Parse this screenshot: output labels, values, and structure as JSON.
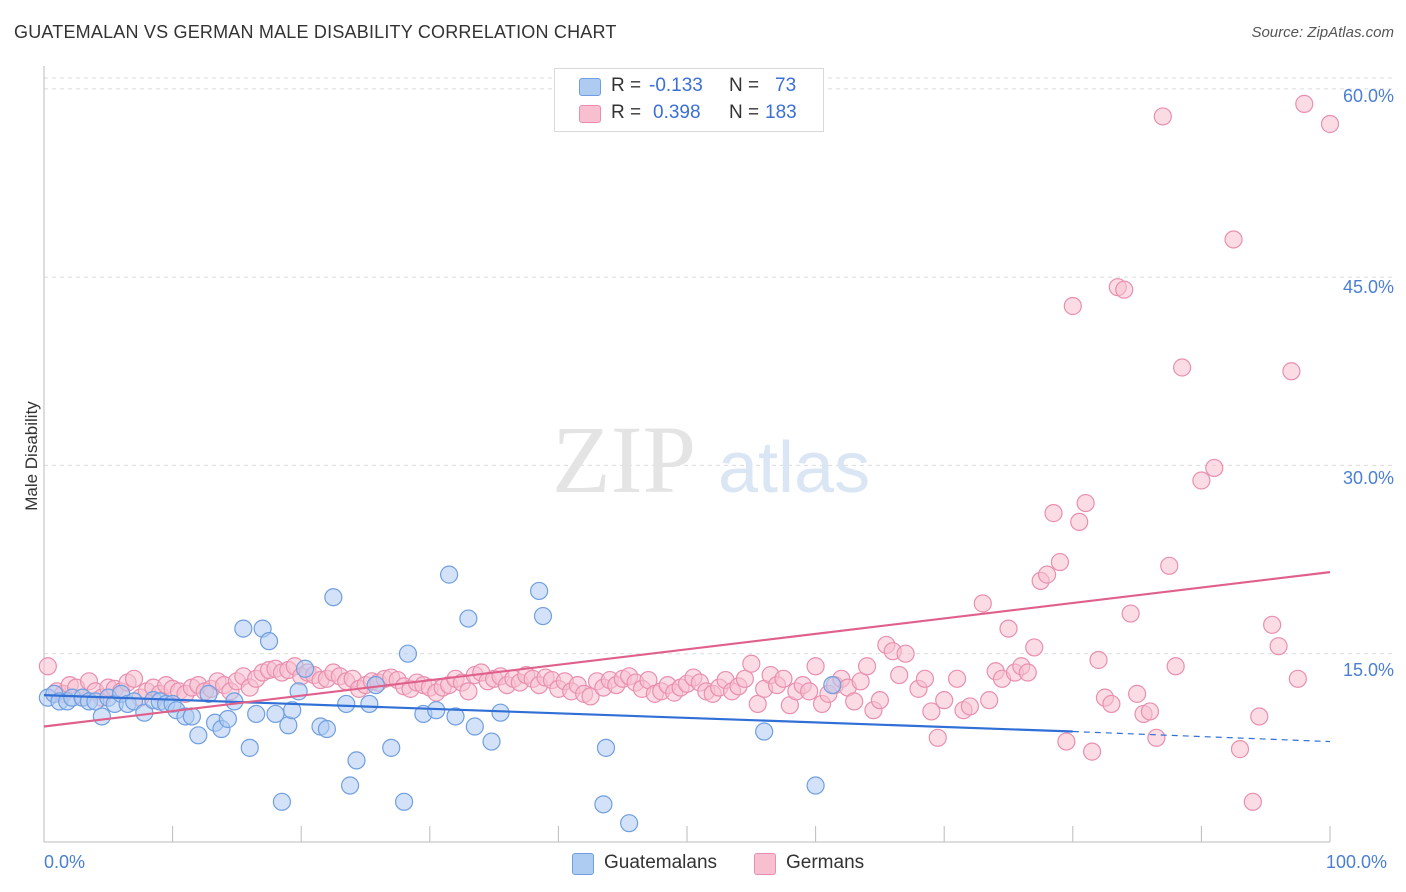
{
  "title": "GUATEMALAN VS GERMAN MALE DISABILITY CORRELATION CHART",
  "source": "Source: ZipAtlas.com",
  "watermark": {
    "zip": "ZIP",
    "atlas": "atlas"
  },
  "legend": {
    "rows": [
      {
        "r_label": "R =",
        "r_value": "-0.133",
        "n_label": "N =",
        "n_value": "73",
        "color": "#aecbf2",
        "stroke": "#6f9fe0"
      },
      {
        "r_label": "R =",
        "r_value": "0.398",
        "n_label": "N =",
        "n_value": "183",
        "color": "#f7bfd0",
        "stroke": "#e98fae"
      }
    ]
  },
  "bottom_legend": [
    {
      "label": "Guatemalans",
      "color": "#aecbf2",
      "stroke": "#6f9fe0"
    },
    {
      "label": "Germans",
      "color": "#f7bfd0",
      "stroke": "#e98fae"
    }
  ],
  "chart_data": {
    "type": "scatter",
    "title": "GUATEMALAN VS GERMAN MALE DISABILITY CORRELATION CHART",
    "xlabel": "",
    "ylabel": "Male Disability",
    "xlim": [
      0,
      100
    ],
    "ylim": [
      0,
      61.5
    ],
    "x_tick_labels": [
      "0.0%",
      "100.0%"
    ],
    "y_ticks": [
      15,
      30,
      45,
      60
    ],
    "y_tick_labels": [
      "15.0%",
      "30.0%",
      "45.0%",
      "60.0%"
    ],
    "grid": true,
    "legend_position": "top-center",
    "series": [
      {
        "name": "Guatemalans",
        "color": "#6f9fe0",
        "trend": {
          "x": [
            0,
            80
          ],
          "y": [
            11.7,
            8.8
          ],
          "dashed_to": [
            100,
            8.0
          ]
        },
        "points": [
          [
            0.3,
            11.5
          ],
          [
            0.8,
            11.8
          ],
          [
            1.2,
            11.2
          ],
          [
            1.8,
            11.2
          ],
          [
            2.2,
            11.5
          ],
          [
            3.0,
            11.5
          ],
          [
            3.5,
            11.2
          ],
          [
            4.0,
            11.2
          ],
          [
            4.5,
            10.0
          ],
          [
            5.0,
            11.5
          ],
          [
            5.5,
            11.0
          ],
          [
            6.0,
            11.8
          ],
          [
            6.5,
            11.0
          ],
          [
            7.0,
            11.2
          ],
          [
            7.8,
            10.3
          ],
          [
            8.5,
            11.3
          ],
          [
            9.0,
            11.2
          ],
          [
            9.5,
            11.0
          ],
          [
            10.0,
            11.0
          ],
          [
            10.3,
            10.5
          ],
          [
            11.0,
            10.0
          ],
          [
            11.5,
            10.0
          ],
          [
            12.0,
            8.5
          ],
          [
            12.8,
            11.8
          ],
          [
            13.3,
            9.5
          ],
          [
            13.8,
            9.0
          ],
          [
            14.3,
            9.8
          ],
          [
            14.8,
            11.2
          ],
          [
            15.5,
            17.0
          ],
          [
            16.0,
            7.5
          ],
          [
            16.5,
            10.2
          ],
          [
            17.0,
            17.0
          ],
          [
            17.5,
            16.0
          ],
          [
            18.0,
            10.2
          ],
          [
            18.5,
            3.2
          ],
          [
            19.0,
            9.3
          ],
          [
            19.3,
            10.5
          ],
          [
            19.8,
            12.0
          ],
          [
            20.3,
            13.8
          ],
          [
            21.5,
            9.2
          ],
          [
            22.0,
            9.0
          ],
          [
            22.5,
            19.5
          ],
          [
            23.5,
            11.0
          ],
          [
            23.8,
            4.5
          ],
          [
            24.3,
            6.5
          ],
          [
            25.3,
            11.0
          ],
          [
            25.8,
            12.5
          ],
          [
            27.0,
            7.5
          ],
          [
            28.0,
            3.2
          ],
          [
            28.3,
            15.0
          ],
          [
            29.5,
            10.2
          ],
          [
            30.5,
            10.5
          ],
          [
            31.5,
            21.3
          ],
          [
            32.0,
            10.0
          ],
          [
            33.0,
            17.8
          ],
          [
            33.5,
            9.2
          ],
          [
            34.8,
            8.0
          ],
          [
            35.5,
            10.3
          ],
          [
            38.5,
            20.0
          ],
          [
            38.8,
            18.0
          ],
          [
            43.5,
            3.0
          ],
          [
            43.7,
            7.5
          ],
          [
            45.5,
            1.5
          ],
          [
            56.0,
            8.8
          ],
          [
            60.0,
            4.5
          ],
          [
            61.3,
            12.5
          ]
        ]
      },
      {
        "name": "Germans",
        "color": "#e98fae",
        "trend": {
          "x": [
            0,
            100
          ],
          "y": [
            9.2,
            21.5
          ]
        },
        "points": [
          [
            0.3,
            14.0
          ],
          [
            1.0,
            12.0
          ],
          [
            1.5,
            11.8
          ],
          [
            2.0,
            12.5
          ],
          [
            2.5,
            12.3
          ],
          [
            3.0,
            11.5
          ],
          [
            3.5,
            12.8
          ],
          [
            4.0,
            12.0
          ],
          [
            4.5,
            11.5
          ],
          [
            5.0,
            12.3
          ],
          [
            5.5,
            12.2
          ],
          [
            6.0,
            12.0
          ],
          [
            6.5,
            12.7
          ],
          [
            7.0,
            13.0
          ],
          [
            7.5,
            11.5
          ],
          [
            8.0,
            12.0
          ],
          [
            8.5,
            12.3
          ],
          [
            9.0,
            11.8
          ],
          [
            9.5,
            12.5
          ],
          [
            10.0,
            12.2
          ],
          [
            10.5,
            12.0
          ],
          [
            11.0,
            11.8
          ],
          [
            11.5,
            12.3
          ],
          [
            12.0,
            12.5
          ],
          [
            12.5,
            12.0
          ],
          [
            13.0,
            12.2
          ],
          [
            13.5,
            12.8
          ],
          [
            14.0,
            12.5
          ],
          [
            14.5,
            12.0
          ],
          [
            15.0,
            12.8
          ],
          [
            15.5,
            13.2
          ],
          [
            16.0,
            12.3
          ],
          [
            16.5,
            13.0
          ],
          [
            17.0,
            13.5
          ],
          [
            17.5,
            13.7
          ],
          [
            18.0,
            13.8
          ],
          [
            18.5,
            13.5
          ],
          [
            19.0,
            13.7
          ],
          [
            19.5,
            14.0
          ],
          [
            20.0,
            13.2
          ],
          [
            20.5,
            13.5
          ],
          [
            21.0,
            13.3
          ],
          [
            21.5,
            12.9
          ],
          [
            22.0,
            13.0
          ],
          [
            22.5,
            13.5
          ],
          [
            23.0,
            13.2
          ],
          [
            23.5,
            12.8
          ],
          [
            24.0,
            13.0
          ],
          [
            24.5,
            12.2
          ],
          [
            25.0,
            12.5
          ],
          [
            25.5,
            12.8
          ],
          [
            26.0,
            12.7
          ],
          [
            26.5,
            13.0
          ],
          [
            27.0,
            13.1
          ],
          [
            27.5,
            12.9
          ],
          [
            28.0,
            12.4
          ],
          [
            28.5,
            12.2
          ],
          [
            29.0,
            12.7
          ],
          [
            29.5,
            12.5
          ],
          [
            30.0,
            12.3
          ],
          [
            30.5,
            11.9
          ],
          [
            31.0,
            12.3
          ],
          [
            31.5,
            12.5
          ],
          [
            32.0,
            13.0
          ],
          [
            32.5,
            12.7
          ],
          [
            33.0,
            12.0
          ],
          [
            33.5,
            13.3
          ],
          [
            34.0,
            13.5
          ],
          [
            34.5,
            12.8
          ],
          [
            35.0,
            13.0
          ],
          [
            35.5,
            13.2
          ],
          [
            36.0,
            12.5
          ],
          [
            36.5,
            13.0
          ],
          [
            37.0,
            12.7
          ],
          [
            37.5,
            13.3
          ],
          [
            38.0,
            13.0
          ],
          [
            38.5,
            12.5
          ],
          [
            39.0,
            13.1
          ],
          [
            39.5,
            12.9
          ],
          [
            40.0,
            12.2
          ],
          [
            40.5,
            12.8
          ],
          [
            41.0,
            12.0
          ],
          [
            41.5,
            12.5
          ],
          [
            42.0,
            11.8
          ],
          [
            42.5,
            11.6
          ],
          [
            43.0,
            12.8
          ],
          [
            43.5,
            12.3
          ],
          [
            44.0,
            12.9
          ],
          [
            44.5,
            12.5
          ],
          [
            45.0,
            13.0
          ],
          [
            45.5,
            13.2
          ],
          [
            46.0,
            12.7
          ],
          [
            46.5,
            12.2
          ],
          [
            47.0,
            12.9
          ],
          [
            47.5,
            11.8
          ],
          [
            48.0,
            12.0
          ],
          [
            48.5,
            12.5
          ],
          [
            49.0,
            11.9
          ],
          [
            49.5,
            12.3
          ],
          [
            50.0,
            12.6
          ],
          [
            50.5,
            13.1
          ],
          [
            51.0,
            12.7
          ],
          [
            51.5,
            12.0
          ],
          [
            52.0,
            11.8
          ],
          [
            52.5,
            12.3
          ],
          [
            53.0,
            12.9
          ],
          [
            53.5,
            12.0
          ],
          [
            54.0,
            12.4
          ],
          [
            54.5,
            13.0
          ],
          [
            55.0,
            14.2
          ],
          [
            55.5,
            11.0
          ],
          [
            56.0,
            12.2
          ],
          [
            56.5,
            13.3
          ],
          [
            57.0,
            12.5
          ],
          [
            57.5,
            13.0
          ],
          [
            58.0,
            10.9
          ],
          [
            58.5,
            12.0
          ],
          [
            59.0,
            12.5
          ],
          [
            59.5,
            12.0
          ],
          [
            60.0,
            14.0
          ],
          [
            60.5,
            11.0
          ],
          [
            61.0,
            11.8
          ],
          [
            61.5,
            12.5
          ],
          [
            62.0,
            13.0
          ],
          [
            62.5,
            12.3
          ],
          [
            63.0,
            11.2
          ],
          [
            63.5,
            12.8
          ],
          [
            64.0,
            14.0
          ],
          [
            64.5,
            10.5
          ],
          [
            65.0,
            11.3
          ],
          [
            65.5,
            15.7
          ],
          [
            66.0,
            15.2
          ],
          [
            66.5,
            13.3
          ],
          [
            67.0,
            15.0
          ],
          [
            68.0,
            12.2
          ],
          [
            68.5,
            13.0
          ],
          [
            69.0,
            10.4
          ],
          [
            69.5,
            8.3
          ],
          [
            70.0,
            11.3
          ],
          [
            71.0,
            13.0
          ],
          [
            71.5,
            10.5
          ],
          [
            72.0,
            10.8
          ],
          [
            73.0,
            19.0
          ],
          [
            73.5,
            11.3
          ],
          [
            74.0,
            13.6
          ],
          [
            74.5,
            13.0
          ],
          [
            75.0,
            17.0
          ],
          [
            75.5,
            13.5
          ],
          [
            76.0,
            14.0
          ],
          [
            76.5,
            13.5
          ],
          [
            77.0,
            15.5
          ],
          [
            77.5,
            20.8
          ],
          [
            78.0,
            21.3
          ],
          [
            78.5,
            26.2
          ],
          [
            79.0,
            22.3
          ],
          [
            79.5,
            8.0
          ],
          [
            80.0,
            42.7
          ],
          [
            80.5,
            25.5
          ],
          [
            81.0,
            27.0
          ],
          [
            81.5,
            7.2
          ],
          [
            82.0,
            14.5
          ],
          [
            82.5,
            11.5
          ],
          [
            83.0,
            11.0
          ],
          [
            83.5,
            44.2
          ],
          [
            84.0,
            44.0
          ],
          [
            84.5,
            18.2
          ],
          [
            85.0,
            11.8
          ],
          [
            85.5,
            10.2
          ],
          [
            86.0,
            10.4
          ],
          [
            86.5,
            8.3
          ],
          [
            87.0,
            57.8
          ],
          [
            87.5,
            22.0
          ],
          [
            88.0,
            14.0
          ],
          [
            88.5,
            37.8
          ],
          [
            90.0,
            28.8
          ],
          [
            91.0,
            29.8
          ],
          [
            92.5,
            48.0
          ],
          [
            93.0,
            7.4
          ],
          [
            94.0,
            3.2
          ],
          [
            94.5,
            10.0
          ],
          [
            95.5,
            17.3
          ],
          [
            96.0,
            15.6
          ],
          [
            97.0,
            37.5
          ],
          [
            97.5,
            13.0
          ],
          [
            98.0,
            58.8
          ],
          [
            100.0,
            57.2
          ]
        ]
      }
    ]
  }
}
